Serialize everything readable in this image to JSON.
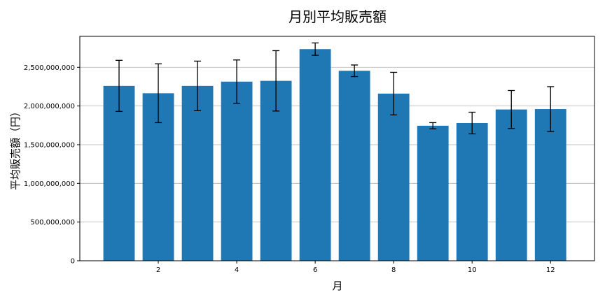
{
  "chart_data": {
    "type": "bar",
    "title": "月別平均販売額",
    "xlabel": "月",
    "ylabel": "平均販売額（円）",
    "x": [
      1,
      2,
      3,
      4,
      5,
      6,
      7,
      8,
      9,
      10,
      11,
      12
    ],
    "values": [
      2260000000,
      2165000000,
      2260000000,
      2315000000,
      2325000000,
      2735000000,
      2455000000,
      2160000000,
      1745000000,
      1780000000,
      1955000000,
      1960000000
    ],
    "errors": [
      330000000,
      380000000,
      320000000,
      280000000,
      390000000,
      80000000,
      75000000,
      275000000,
      40000000,
      140000000,
      245000000,
      290000000
    ],
    "xticks": [
      2,
      4,
      6,
      8,
      10,
      12
    ],
    "xtick_labels": [
      "2",
      "4",
      "6",
      "8",
      "10",
      "12"
    ],
    "xlim": [
      0,
      13.12
    ],
    "ylim": [
      0,
      2900000000
    ],
    "yticks": [
      0,
      500000000,
      1000000000,
      1500000000,
      2000000000,
      2500000000
    ],
    "ytick_labels": [
      "0",
      "500,000,000",
      "1,000,000,000",
      "1,500,000,000",
      "2,000,000,000",
      "2,500,000,000"
    ],
    "bar_color": "#1f77b4",
    "grid": "y",
    "legend": "none"
  }
}
